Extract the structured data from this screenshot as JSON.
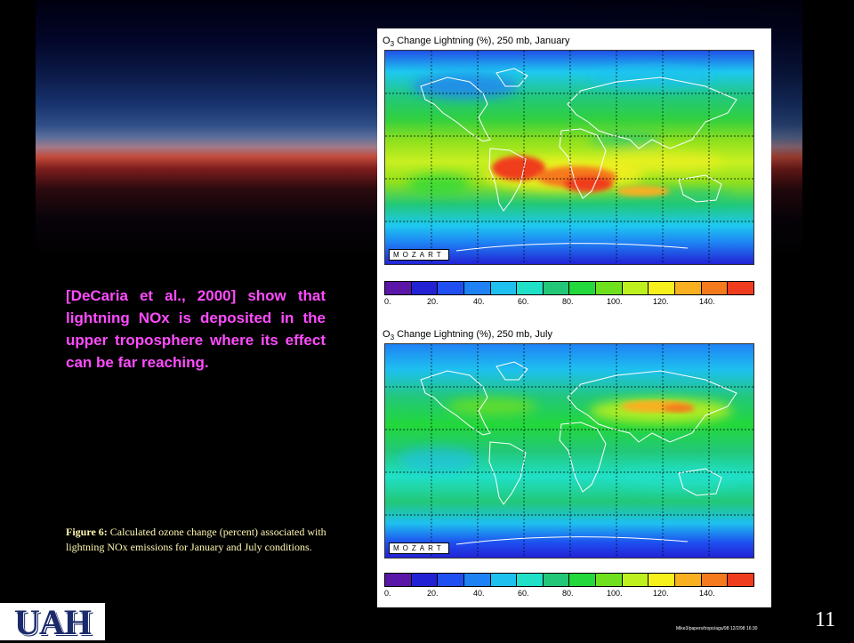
{
  "slide": {
    "description": "[DeCaria et al., 2000] show that lightning NOx is deposited in the upper troposphere where its effect can be far reaching.",
    "caption_label": "Figure 6:",
    "caption_text": " Calculated ozone change (percent) associated with lightning NOx emissions for January and July conditions.",
    "logo": "UAH",
    "page_number": "11",
    "file_path": "Mike3/papers/tropo/agu/98   12/2/98 16:30"
  },
  "figure": {
    "panels": [
      {
        "title_prefix": "O",
        "title_sub": "3",
        "title_rest": " Change Lightning (%), 250 mb, January",
        "watermark": "MOZART"
      },
      {
        "title_prefix": "O",
        "title_sub": "3",
        "title_rest": " Change Lightning (%), 250 mb, July",
        "watermark": "MOZART"
      }
    ],
    "colorbar": {
      "colors": [
        "#5a16a6",
        "#2222d4",
        "#1f4ff0",
        "#1e82f4",
        "#1ec0f0",
        "#20e0c8",
        "#22c878",
        "#22d83a",
        "#6ee01e",
        "#bdf01e",
        "#f6f01c",
        "#f8b020",
        "#f57a1e",
        "#f03c1e"
      ],
      "tick_labels": [
        "0.",
        "20.",
        "40.",
        "60.",
        "80.",
        "100.",
        "120.",
        "140."
      ]
    }
  }
}
